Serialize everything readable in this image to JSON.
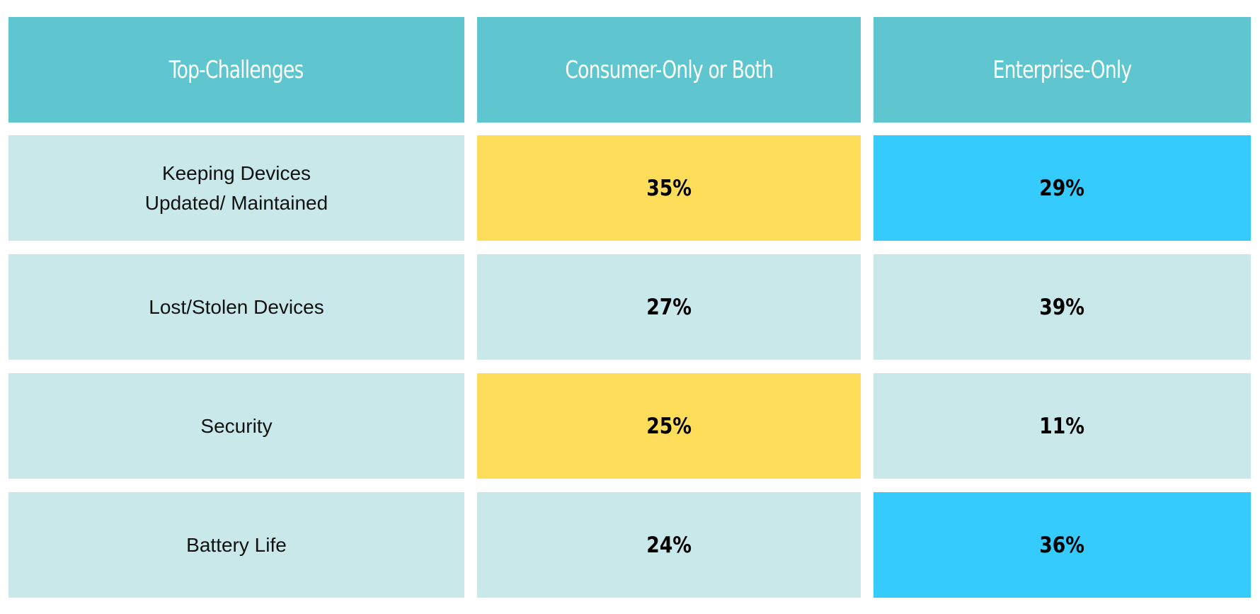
{
  "colors": {
    "header": "#5fc5cf",
    "cell_default": "#c9e8ea",
    "highlight_consumer": "#fedd5b",
    "highlight_enterprise": "#35ccfd"
  },
  "chart_data": {
    "type": "table",
    "columns": [
      "Top-Challenges",
      "Consumer-Only or Both",
      "Enterprise-Only"
    ],
    "rows": [
      {
        "challenge": "Keeping Devices\nUpdated/ Maintained",
        "consumer": "35%",
        "enterprise": "29%",
        "consumer_highlight": true,
        "enterprise_highlight": true
      },
      {
        "challenge": "Lost/Stolen Devices",
        "consumer": "27%",
        "enterprise": "39%",
        "consumer_highlight": false,
        "enterprise_highlight": false
      },
      {
        "challenge": "Security",
        "consumer": "25%",
        "enterprise": "11%",
        "consumer_highlight": true,
        "enterprise_highlight": false
      },
      {
        "challenge": "Battery Life",
        "consumer": "24%",
        "enterprise": "36%",
        "consumer_highlight": false,
        "enterprise_highlight": true
      }
    ]
  }
}
